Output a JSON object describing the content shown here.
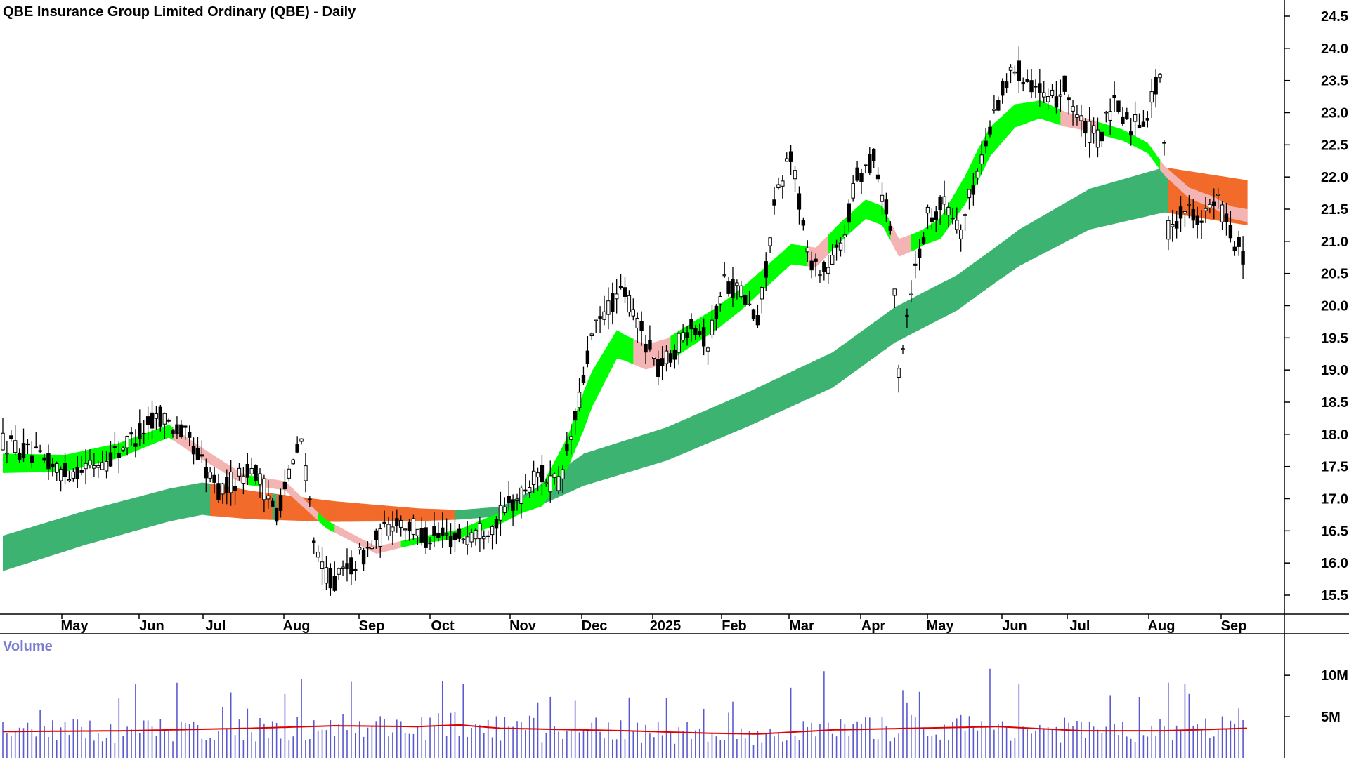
{
  "chart_data": {
    "type": "candlestick",
    "title": "QBE Insurance Group Limited Ordinary (QBE) - Daily",
    "price_axis": {
      "ylim": [
        15.2,
        24.8
      ],
      "ticks": [
        "15.5",
        "16.0",
        "16.5",
        "17.0",
        "17.5",
        "18.0",
        "18.5",
        "19.0",
        "19.5",
        "20.0",
        "20.5",
        "21.0",
        "21.5",
        "22.0",
        "22.5",
        "23.0",
        "23.5",
        "24.0",
        "24.5"
      ]
    },
    "volume_panel": {
      "label": "Volume",
      "ticks": [
        "5M",
        "10M"
      ],
      "tick_values": [
        5,
        10
      ],
      "ylim": [
        0,
        14
      ],
      "bar_color": "#5a5ad0",
      "avg_color": "#e00000"
    },
    "months": [
      "May",
      "Jun",
      "Jul",
      "Aug",
      "Sep",
      "Oct",
      "Nov",
      "Dec",
      "2025",
      "Feb",
      "Mar",
      "Apr",
      "May",
      "Jun",
      "Jul",
      "Aug",
      "Sep"
    ],
    "price_path": [
      [
        0,
        17.9
      ],
      [
        15,
        17.4
      ],
      [
        25,
        17.6
      ],
      [
        38,
        18.3
      ],
      [
        45,
        17.9
      ],
      [
        52,
        17.1
      ],
      [
        60,
        17.5
      ],
      [
        66,
        16.8
      ],
      [
        72,
        17.9
      ],
      [
        76,
        16.0
      ],
      [
        80,
        15.7
      ],
      [
        88,
        16.2
      ],
      [
        95,
        16.7
      ],
      [
        102,
        16.4
      ],
      [
        110,
        16.4
      ],
      [
        118,
        16.6
      ],
      [
        124,
        17.0
      ],
      [
        129,
        17.4
      ],
      [
        134,
        17.2
      ],
      [
        138,
        18.2
      ],
      [
        142,
        19.5
      ],
      [
        146,
        20.0
      ],
      [
        150,
        20.2
      ],
      [
        154,
        19.6
      ],
      [
        158,
        19.0
      ],
      [
        162,
        19.3
      ],
      [
        166,
        19.8
      ],
      [
        170,
        19.4
      ],
      [
        174,
        20.4
      ],
      [
        178,
        20.2
      ],
      [
        182,
        19.7
      ],
      [
        186,
        21.5
      ],
      [
        190,
        22.4
      ],
      [
        194,
        20.8
      ],
      [
        198,
        20.5
      ],
      [
        202,
        20.9
      ],
      [
        206,
        22.0
      ],
      [
        210,
        22.3
      ],
      [
        214,
        21.2
      ],
      [
        216,
        19.0
      ],
      [
        219,
        20.3
      ],
      [
        223,
        21.4
      ],
      [
        227,
        21.6
      ],
      [
        231,
        21.2
      ],
      [
        236,
        22.3
      ],
      [
        240,
        23.2
      ],
      [
        244,
        23.7
      ],
      [
        248,
        23.5
      ],
      [
        252,
        23.1
      ],
      [
        256,
        23.4
      ],
      [
        260,
        22.8
      ],
      [
        264,
        22.6
      ],
      [
        268,
        23.1
      ],
      [
        272,
        22.8
      ],
      [
        276,
        23.0
      ],
      [
        279,
        23.6
      ],
      [
        281,
        21.2
      ],
      [
        285,
        21.5
      ],
      [
        289,
        21.4
      ],
      [
        293,
        21.6
      ],
      [
        297,
        21.0
      ],
      [
        300,
        20.7
      ]
    ],
    "ema_short": [
      [
        0,
        17.55
      ],
      [
        15,
        17.55
      ],
      [
        28,
        17.75
      ],
      [
        40,
        18.05
      ],
      [
        48,
        17.7
      ],
      [
        58,
        17.3
      ],
      [
        68,
        17.2
      ],
      [
        78,
        16.6
      ],
      [
        90,
        16.2
      ],
      [
        100,
        16.35
      ],
      [
        110,
        16.45
      ],
      [
        120,
        16.7
      ],
      [
        130,
        17.05
      ],
      [
        136,
        17.7
      ],
      [
        142,
        18.7
      ],
      [
        148,
        19.4
      ],
      [
        155,
        19.2
      ],
      [
        160,
        19.3
      ],
      [
        166,
        19.55
      ],
      [
        172,
        19.8
      ],
      [
        178,
        20.1
      ],
      [
        184,
        20.45
      ],
      [
        190,
        20.8
      ],
      [
        196,
        20.75
      ],
      [
        202,
        21.15
      ],
      [
        208,
        21.5
      ],
      [
        212,
        21.4
      ],
      [
        216,
        20.9
      ],
      [
        220,
        21.0
      ],
      [
        226,
        21.2
      ],
      [
        232,
        21.8
      ],
      [
        238,
        22.55
      ],
      [
        244,
        22.95
      ],
      [
        250,
        23.05
      ],
      [
        256,
        22.9
      ],
      [
        262,
        22.8
      ],
      [
        270,
        22.65
      ],
      [
        276,
        22.45
      ],
      [
        280,
        22.1
      ],
      [
        286,
        21.75
      ],
      [
        292,
        21.6
      ],
      [
        296,
        21.45
      ],
      [
        300,
        21.4
      ]
    ],
    "band_short_width": [
      [
        0,
        0.3
      ],
      [
        40,
        0.2
      ],
      [
        60,
        0.15
      ],
      [
        100,
        0.1
      ],
      [
        125,
        0.2
      ],
      [
        140,
        0.6
      ],
      [
        150,
        0.4
      ],
      [
        170,
        0.35
      ],
      [
        200,
        0.3
      ],
      [
        212,
        0.3
      ],
      [
        222,
        0.25
      ],
      [
        235,
        0.5
      ],
      [
        248,
        0.3
      ],
      [
        260,
        0.2
      ],
      [
        280,
        0.15
      ],
      [
        300,
        0.2
      ]
    ],
    "ema_long": [
      [
        0,
        16.15
      ],
      [
        20,
        16.55
      ],
      [
        40,
        16.9
      ],
      [
        48,
        17.0
      ],
      [
        60,
        16.9
      ],
      [
        70,
        16.85
      ],
      [
        80,
        16.8
      ],
      [
        100,
        16.75
      ],
      [
        110,
        16.75
      ],
      [
        120,
        16.8
      ],
      [
        128,
        17.0
      ],
      [
        140,
        17.45
      ],
      [
        160,
        17.85
      ],
      [
        180,
        18.4
      ],
      [
        200,
        19.0
      ],
      [
        215,
        19.7
      ],
      [
        230,
        20.2
      ],
      [
        245,
        20.9
      ],
      [
        262,
        21.5
      ],
      [
        280,
        21.8
      ],
      [
        300,
        21.6
      ]
    ],
    "band_long_width": [
      [
        0,
        0.55
      ],
      [
        50,
        0.5
      ],
      [
        100,
        0.2
      ],
      [
        110,
        0.15
      ],
      [
        120,
        0.15
      ],
      [
        140,
        0.5
      ],
      [
        200,
        0.55
      ],
      [
        240,
        0.55
      ],
      [
        280,
        0.7
      ],
      [
        300,
        0.7
      ]
    ],
    "band_colors": {
      "short_up": "#00ff00",
      "short_down": "#f4b4b4",
      "long_up": "#3cb371",
      "long_down": "#f26b2a"
    },
    "long_down_ranges": [
      [
        50,
        64
      ],
      [
        66,
        108
      ],
      [
        281,
        300
      ]
    ],
    "short_down_ranges": [
      [
        41,
        58
      ],
      [
        62,
        75
      ],
      [
        80,
        95
      ],
      [
        152,
        160
      ],
      [
        194,
        198
      ],
      [
        214,
        218
      ],
      [
        255,
        263
      ],
      [
        279,
        300
      ]
    ],
    "volume_path": [
      [
        0,
        3.2
      ],
      [
        30,
        3.3
      ],
      [
        60,
        3.6
      ],
      [
        80,
        3.9
      ],
      [
        100,
        3.8
      ],
      [
        110,
        4.0
      ],
      [
        120,
        3.6
      ],
      [
        150,
        3.3
      ],
      [
        170,
        3.0
      ],
      [
        182,
        2.9
      ],
      [
        200,
        3.4
      ],
      [
        220,
        3.6
      ],
      [
        240,
        3.8
      ],
      [
        260,
        3.3
      ],
      [
        280,
        3.3
      ],
      [
        300,
        3.6
      ]
    ],
    "volume_spikes": [
      [
        32,
        8.9
      ],
      [
        42,
        9.1
      ],
      [
        72,
        9.5
      ],
      [
        84,
        9.2
      ],
      [
        198,
        10.5
      ],
      [
        190,
        8.5
      ],
      [
        217,
        8.2
      ],
      [
        238,
        10.8
      ],
      [
        245,
        9.0
      ],
      [
        281,
        9.1
      ],
      [
        285,
        8.9
      ],
      [
        298,
        6.0
      ]
    ]
  }
}
